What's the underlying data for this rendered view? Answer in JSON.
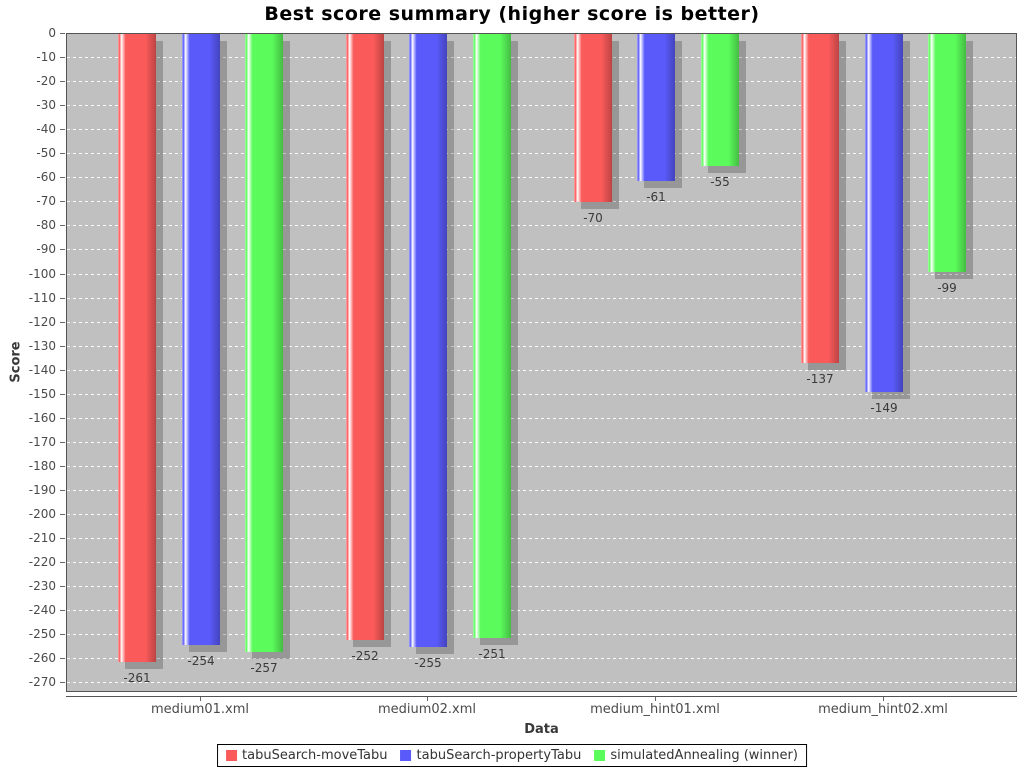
{
  "title": "Best score summary (higher score is better)",
  "chart_data": {
    "type": "bar",
    "title": "Best score summary (higher score is better)",
    "xlabel": "Data",
    "ylabel": "Score",
    "categories": [
      "medium01.xml",
      "medium02.xml",
      "medium_hint01.xml",
      "medium_hint02.xml"
    ],
    "series": [
      {
        "name": "tabuSearch-moveTabu",
        "color": "#fb5a5a",
        "values": [
          -261,
          -252,
          -70,
          -137
        ]
      },
      {
        "name": "tabuSearch-propertyTabu",
        "color": "#5a5afb",
        "values": [
          -254,
          -255,
          -61,
          -149
        ]
      },
      {
        "name": "simulatedAnnealing (winner)",
        "color": "#5afb5a",
        "values": [
          -257,
          -251,
          -55,
          -99
        ]
      }
    ],
    "bar_value_labels": true,
    "ylim": [
      -274,
      0
    ],
    "ytick_step": 10,
    "ytick_min": -270,
    "grid": true,
    "legend_position": "bottom",
    "plot_background": "#c0c0c0",
    "gridline_color": "#ffffff",
    "shadow": true
  }
}
